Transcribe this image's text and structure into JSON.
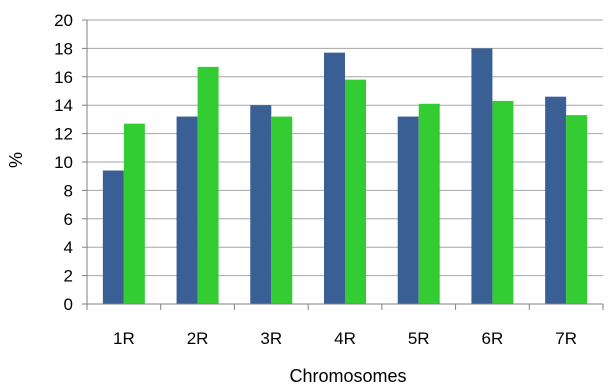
{
  "chart_data": {
    "type": "bar",
    "categories": [
      "1R",
      "2R",
      "3R",
      "4R",
      "5R",
      "6R",
      "7R"
    ],
    "series": [
      {
        "values": [
          9.4,
          13.2,
          14.0,
          17.7,
          13.2,
          18.0,
          14.6
        ],
        "color": "#3a5f95"
      },
      {
        "values": [
          12.7,
          16.7,
          13.2,
          15.8,
          14.1,
          14.3,
          13.3
        ],
        "color": "#33cc33"
      }
    ],
    "xlabel": "Chromosomes",
    "ylabel": "%",
    "ylim": [
      0,
      20
    ],
    "yticks": [
      0,
      2,
      4,
      6,
      8,
      10,
      12,
      14,
      16,
      18,
      20
    ],
    "grid": true,
    "legend": "none"
  }
}
